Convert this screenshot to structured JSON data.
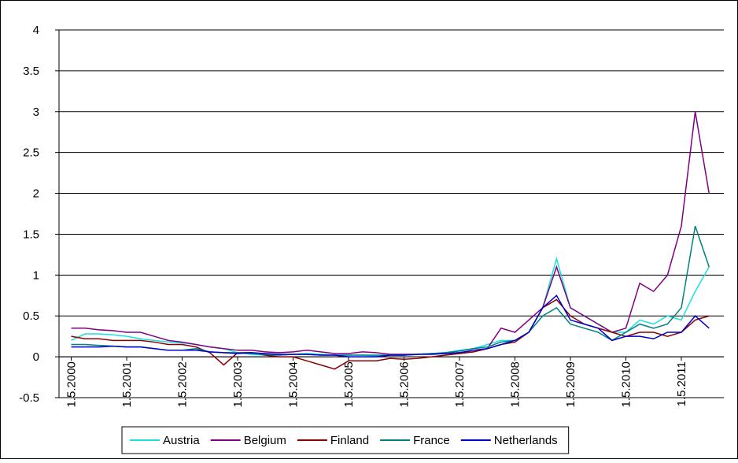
{
  "chart_data": {
    "type": "line",
    "categories": [
      "1.5.2000",
      null,
      null,
      null,
      "1.5.2001",
      null,
      null,
      null,
      "1.5.2002",
      null,
      null,
      null,
      "1.5.2003",
      null,
      null,
      null,
      "1.5.2004",
      null,
      null,
      null,
      "1.5.2005",
      null,
      null,
      null,
      "1.5.2006",
      null,
      null,
      null,
      "1.5.2007",
      null,
      null,
      null,
      "1.5.2008",
      null,
      null,
      null,
      "1.5.2009",
      null,
      null,
      null,
      "1.5.2010",
      null,
      null,
      null,
      "1.5.2011",
      null,
      null
    ],
    "series": [
      {
        "name": "Austria",
        "color": "#19e0e0",
        "values": [
          0.2,
          0.28,
          0.28,
          0.27,
          0.25,
          0.22,
          0.2,
          0.18,
          0.17,
          0.15,
          0.12,
          0.1,
          0.05,
          0.03,
          0.02,
          0.02,
          0.03,
          0.04,
          0.03,
          0.02,
          0.02,
          0.02,
          0.01,
          0.02,
          0.02,
          0.03,
          0.04,
          0.05,
          0.08,
          0.1,
          0.15,
          0.2,
          0.2,
          0.3,
          0.6,
          1.2,
          0.6,
          0.5,
          0.4,
          0.3,
          0.3,
          0.45,
          0.4,
          0.5,
          0.45,
          0.8,
          1.1
        ]
      },
      {
        "name": "Belgium",
        "color": "#800080",
        "values": [
          0.35,
          0.35,
          0.33,
          0.32,
          0.3,
          0.3,
          0.25,
          0.2,
          0.18,
          0.15,
          0.12,
          0.1,
          0.08,
          0.08,
          0.06,
          0.05,
          0.06,
          0.08,
          0.06,
          0.04,
          0.04,
          0.06,
          0.05,
          0.03,
          0.03,
          0.03,
          0.04,
          0.04,
          0.05,
          0.06,
          0.1,
          0.35,
          0.3,
          0.45,
          0.6,
          1.1,
          0.6,
          0.5,
          0.4,
          0.3,
          0.35,
          0.9,
          0.8,
          1.0,
          1.6,
          3.0,
          2.0
        ]
      },
      {
        "name": "Finland",
        "color": "#8b0000",
        "values": [
          0.25,
          0.22,
          0.22,
          0.2,
          0.2,
          0.2,
          0.18,
          0.15,
          0.15,
          0.12,
          0.05,
          -0.1,
          0.05,
          0.05,
          0.02,
          0.0,
          0.0,
          -0.05,
          -0.1,
          -0.15,
          -0.05,
          -0.05,
          -0.05,
          -0.02,
          -0.03,
          -0.02,
          0.0,
          0.02,
          0.04,
          0.06,
          0.1,
          0.15,
          0.18,
          0.3,
          0.6,
          0.7,
          0.5,
          0.4,
          0.35,
          0.3,
          0.25,
          0.3,
          0.3,
          0.25,
          0.3,
          0.45,
          0.5
        ]
      },
      {
        "name": "France",
        "color": "#008080",
        "values": [
          0.15,
          0.15,
          0.14,
          0.13,
          0.12,
          0.12,
          0.1,
          0.08,
          0.08,
          0.1,
          0.06,
          0.05,
          0.05,
          0.04,
          0.03,
          0.02,
          0.03,
          0.03,
          0.02,
          0.02,
          0.02,
          0.02,
          0.02,
          0.02,
          0.02,
          0.03,
          0.04,
          0.05,
          0.07,
          0.1,
          0.12,
          0.18,
          0.2,
          0.3,
          0.5,
          0.6,
          0.4,
          0.35,
          0.3,
          0.2,
          0.3,
          0.4,
          0.35,
          0.4,
          0.6,
          1.6,
          1.1
        ]
      },
      {
        "name": "Netherlands",
        "color": "#0000cc",
        "values": [
          0.12,
          0.12,
          0.12,
          0.13,
          0.12,
          0.12,
          0.1,
          0.08,
          0.08,
          0.08,
          0.06,
          0.05,
          0.04,
          0.05,
          0.04,
          0.03,
          0.03,
          0.03,
          0.02,
          0.02,
          0.0,
          0.0,
          0.0,
          0.02,
          0.02,
          0.03,
          0.03,
          0.04,
          0.05,
          0.08,
          0.1,
          0.15,
          0.2,
          0.3,
          0.6,
          0.75,
          0.45,
          0.4,
          0.35,
          0.2,
          0.25,
          0.25,
          0.22,
          0.3,
          0.3,
          0.5,
          0.35
        ]
      }
    ],
    "ylim": [
      -0.5,
      4
    ],
    "yticks": [
      -0.5,
      0,
      0.5,
      1,
      1.5,
      2,
      2.5,
      3,
      3.5,
      4
    ],
    "grid": true,
    "legend": "bottom"
  }
}
